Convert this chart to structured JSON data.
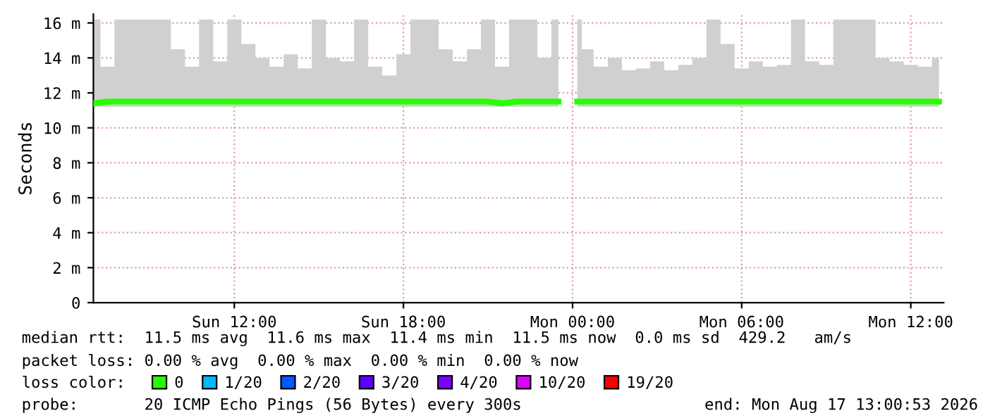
{
  "chart_data": {
    "type": "line",
    "ylabel": "Seconds",
    "x": [
      "2026-08-16T07:00",
      "2026-08-16T07:30",
      "2026-08-16T08:00",
      "2026-08-16T08:30",
      "2026-08-16T09:00",
      "2026-08-16T09:30",
      "2026-08-16T10:00",
      "2026-08-16T10:30",
      "2026-08-16T11:00",
      "2026-08-16T11:30",
      "2026-08-16T12:00",
      "2026-08-16T12:30",
      "2026-08-16T13:00",
      "2026-08-16T13:30",
      "2026-08-16T14:00",
      "2026-08-16T14:30",
      "2026-08-16T15:00",
      "2026-08-16T15:30",
      "2026-08-16T16:00",
      "2026-08-16T16:30",
      "2026-08-16T17:00",
      "2026-08-16T17:30",
      "2026-08-16T18:00",
      "2026-08-16T18:30",
      "2026-08-16T19:00",
      "2026-08-16T19:30",
      "2026-08-16T20:00",
      "2026-08-16T20:30",
      "2026-08-16T21:00",
      "2026-08-16T21:30",
      "2026-08-16T22:00",
      "2026-08-16T22:30",
      "2026-08-16T23:00",
      "2026-08-16T23:30",
      "2026-08-16T23:55",
      "2026-08-17T00:10",
      "2026-08-17T00:30",
      "2026-08-17T01:00",
      "2026-08-17T01:30",
      "2026-08-17T02:00",
      "2026-08-17T02:30",
      "2026-08-17T03:00",
      "2026-08-17T03:30",
      "2026-08-17T04:00",
      "2026-08-17T04:30",
      "2026-08-17T05:00",
      "2026-08-17T05:30",
      "2026-08-17T06:00",
      "2026-08-17T06:30",
      "2026-08-17T07:00",
      "2026-08-17T07:30",
      "2026-08-17T08:00",
      "2026-08-17T08:30",
      "2026-08-17T09:00",
      "2026-08-17T09:30",
      "2026-08-17T10:00",
      "2026-08-17T10:30",
      "2026-08-17T11:00",
      "2026-08-17T11:30",
      "2026-08-17T12:00",
      "2026-08-17T12:30",
      "2026-08-17T13:00"
    ],
    "series": [
      {
        "name": "0",
        "color": "#26ff00",
        "values": [
          11.4,
          11.5,
          11.5,
          11.5,
          11.5,
          11.5,
          11.5,
          11.5,
          11.5,
          11.5,
          11.5,
          11.5,
          11.5,
          11.5,
          11.5,
          11.5,
          11.5,
          11.5,
          11.5,
          11.5,
          11.5,
          11.5,
          11.5,
          11.5,
          11.5,
          11.5,
          11.5,
          11.5,
          11.5,
          11.4,
          11.5,
          11.5,
          11.5,
          11.5,
          null,
          11.5,
          11.5,
          11.5,
          11.5,
          11.5,
          11.5,
          11.5,
          11.5,
          11.5,
          11.5,
          11.5,
          11.5,
          11.5,
          11.5,
          11.5,
          11.5,
          11.5,
          11.5,
          11.5,
          11.5,
          11.5,
          11.5,
          11.5,
          11.5,
          11.5,
          11.5,
          11.5
        ],
        "lower": [
          11.2,
          11.2,
          11.2,
          11.2,
          11.2,
          11.2,
          11.2,
          11.2,
          11.2,
          11.2,
          11.2,
          11.2,
          11.2,
          11.2,
          11.2,
          11.2,
          11.2,
          11.2,
          11.2,
          11.2,
          11.2,
          11.2,
          11.2,
          11.2,
          11.2,
          11.2,
          11.2,
          11.2,
          11.2,
          11.2,
          11.2,
          11.2,
          11.2,
          11.2,
          null,
          11.2,
          11.2,
          11.2,
          11.2,
          11.2,
          11.2,
          11.2,
          11.2,
          11.2,
          11.2,
          11.2,
          11.2,
          11.2,
          11.2,
          11.2,
          11.2,
          11.2,
          11.2,
          11.2,
          11.2,
          11.2,
          11.2,
          11.2,
          11.2,
          11.2,
          11.2,
          11.2
        ],
        "upper": [
          16.2,
          13.5,
          16.2,
          16.2,
          16.2,
          16.2,
          14.5,
          13.5,
          16.2,
          13.8,
          16.2,
          14.8,
          14.0,
          13.5,
          14.2,
          13.4,
          16.2,
          14.0,
          13.8,
          16.2,
          13.5,
          13.0,
          14.2,
          16.2,
          16.2,
          14.5,
          13.8,
          14.5,
          16.2,
          13.5,
          16.2,
          16.2,
          14.0,
          16.2,
          null,
          16.2,
          14.5,
          13.5,
          14.0,
          13.3,
          13.4,
          13.8,
          13.3,
          13.6,
          14.0,
          16.2,
          14.8,
          13.4,
          13.8,
          13.5,
          13.6,
          16.2,
          13.8,
          13.6,
          16.2,
          16.2,
          16.2,
          14.0,
          13.8,
          13.6,
          13.5,
          14.0
        ]
      },
      {
        "name": "1/20",
        "color": "#00b8ff",
        "values": [
          null,
          null,
          null,
          null,
          null,
          null,
          null,
          null,
          null,
          null,
          null,
          null,
          null,
          null,
          null,
          null,
          null,
          null,
          null,
          null,
          null,
          null,
          null,
          null,
          null,
          null,
          null,
          null,
          null,
          null,
          null,
          null,
          null,
          null,
          null,
          null,
          null,
          null,
          null,
          null,
          null,
          null,
          null,
          null,
          null,
          null,
          null,
          null,
          null,
          null,
          null,
          null,
          null,
          null,
          null,
          null,
          null,
          null,
          null,
          null,
          null,
          null
        ]
      },
      {
        "name": "2/20",
        "color": "#0059ff",
        "values": [
          null,
          null,
          null,
          null,
          null,
          null,
          null,
          null,
          null,
          null,
          null,
          null,
          null,
          null,
          null,
          null,
          null,
          null,
          null,
          null,
          null,
          null,
          null,
          null,
          null,
          null,
          null,
          null,
          null,
          null,
          null,
          null,
          null,
          null,
          null,
          null,
          null,
          null,
          null,
          null,
          null,
          null,
          null,
          null,
          null,
          null,
          null,
          null,
          null,
          null,
          null,
          null,
          null,
          null,
          null,
          null,
          null,
          null,
          null,
          null,
          null,
          null
        ]
      },
      {
        "name": "3/20",
        "color": "#5e00ff",
        "values": [
          null,
          null,
          null,
          null,
          null,
          null,
          null,
          null,
          null,
          null,
          null,
          null,
          null,
          null,
          null,
          null,
          null,
          null,
          null,
          null,
          null,
          null,
          null,
          null,
          null,
          null,
          null,
          null,
          null,
          null,
          null,
          null,
          null,
          null,
          null,
          null,
          null,
          null,
          null,
          null,
          null,
          null,
          null,
          null,
          null,
          null,
          null,
          null,
          null,
          null,
          null,
          null,
          null,
          null,
          null,
          null,
          null,
          null,
          null,
          null,
          null,
          null
        ]
      },
      {
        "name": "4/20",
        "color": "#7e00ff",
        "values": [
          null,
          null,
          null,
          null,
          null,
          null,
          null,
          null,
          null,
          null,
          null,
          null,
          null,
          null,
          null,
          null,
          null,
          null,
          null,
          null,
          null,
          null,
          null,
          null,
          null,
          null,
          null,
          null,
          null,
          null,
          null,
          null,
          null,
          null,
          null,
          null,
          null,
          null,
          null,
          null,
          null,
          null,
          null,
          null,
          null,
          null,
          null,
          null,
          null,
          null,
          null,
          null,
          null,
          null,
          null,
          null,
          null,
          null,
          null,
          null,
          null,
          null
        ]
      },
      {
        "name": "10/20",
        "color": "#dd00ff",
        "values": [
          null,
          null,
          null,
          null,
          null,
          null,
          null,
          null,
          null,
          null,
          null,
          null,
          null,
          null,
          null,
          null,
          null,
          null,
          null,
          null,
          null,
          null,
          null,
          null,
          null,
          null,
          null,
          null,
          null,
          null,
          null,
          null,
          null,
          null,
          null,
          null,
          null,
          null,
          null,
          null,
          null,
          null,
          null,
          null,
          null,
          null,
          null,
          null,
          null,
          null,
          null,
          null,
          null,
          null,
          null,
          null,
          null,
          null,
          null,
          null,
          null,
          null
        ]
      },
      {
        "name": "19/20",
        "color": "#ff0000",
        "values": [
          null,
          null,
          null,
          null,
          null,
          null,
          null,
          null,
          null,
          null,
          null,
          null,
          null,
          null,
          null,
          null,
          null,
          null,
          null,
          null,
          null,
          null,
          null,
          null,
          null,
          null,
          null,
          null,
          null,
          null,
          null,
          null,
          null,
          null,
          null,
          null,
          null,
          null,
          null,
          null,
          null,
          null,
          null,
          null,
          null,
          null,
          null,
          null,
          null,
          null,
          null,
          null,
          null,
          null,
          null,
          null,
          null,
          null,
          null,
          null,
          null,
          null
        ]
      }
    ],
    "legend": "bottom",
    "legend_title": "loss color:",
    "xlim": [
      "2026-08-16T07:00",
      "2026-08-17T13:10"
    ],
    "xticks": [
      {
        "value": "2026-08-16T12:00",
        "label": "Sun 12:00"
      },
      {
        "value": "2026-08-16T18:00",
        "label": "Sun 18:00"
      },
      {
        "value": "2026-08-17T00:00",
        "label": "Mon 00:00"
      },
      {
        "value": "2026-08-17T06:00",
        "label": "Mon 06:00"
      },
      {
        "value": "2026-08-17T12:00",
        "label": "Mon 12:00"
      }
    ],
    "ylim": [
      0,
      16.5
    ],
    "yticks": [
      0,
      {
        "value": 2,
        "label": "2 m"
      },
      {
        "value": 4,
        "label": "4 m"
      },
      {
        "value": 6,
        "label": "6 m"
      },
      {
        "value": 8,
        "label": "8 m"
      },
      {
        "value": 10,
        "label": "10 m"
      },
      {
        "value": 12,
        "label": "12 m"
      },
      {
        "value": 14,
        "label": "14 m"
      },
      {
        "value": 16,
        "label": "16 m"
      }
    ],
    "grid": true,
    "annotations": [
      "median rtt:  11.5 ms avg  11.6 ms max  11.4 ms min  11.5 ms now  0.0 ms sd  429.2   am/s",
      "packet loss: 0.00 % avg  0.00 % max  0.00 % min  0.00 % now",
      "probe:       20 ICMP Echo Pings (56 Bytes) every 300s",
      "end: Mon Aug 17 13:00:53 2026"
    ]
  }
}
